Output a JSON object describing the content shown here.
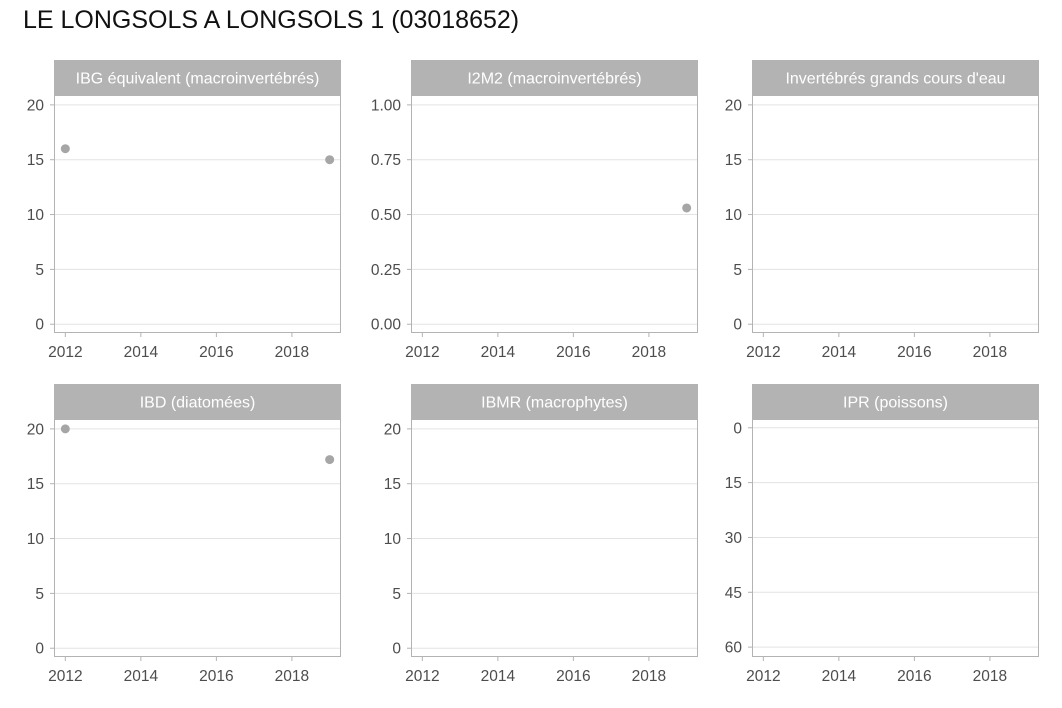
{
  "title": "LE LONGSOLS A LONGSOLS 1 (03018652)",
  "colors": {
    "strip_fill": "#b3b3b3",
    "panel_border": "#b3b3b3",
    "grid": "#e3e3e3",
    "point": "#a6a6a6",
    "tick_text": "#4d4d4d"
  },
  "chart_data": [
    {
      "type": "scatter",
      "title": "IBG équivalent (macroinvertébrés)",
      "xlim": [
        2011.7,
        2019.3
      ],
      "xticks": [
        2012,
        2014,
        2016,
        2018
      ],
      "ylim": [
        -0.8,
        20.9
      ],
      "yticks": [
        0,
        5,
        10,
        15,
        20
      ],
      "ytick_labels": [
        "0",
        "5",
        "10",
        "15",
        "20"
      ],
      "y_reversed": false,
      "points": [
        {
          "x": 2012,
          "y": 16
        },
        {
          "x": 2019,
          "y": 15
        }
      ]
    },
    {
      "type": "scatter",
      "title": "I2M2 (macroinvertébrés)",
      "xlim": [
        2011.7,
        2019.3
      ],
      "xticks": [
        2012,
        2014,
        2016,
        2018
      ],
      "ylim": [
        -0.04,
        1.045
      ],
      "yticks": [
        0,
        0.25,
        0.5,
        0.75,
        1
      ],
      "ytick_labels": [
        "0.00",
        "0.25",
        "0.50",
        "0.75",
        "1.00"
      ],
      "y_reversed": false,
      "points": [
        {
          "x": 2019,
          "y": 0.53
        }
      ]
    },
    {
      "type": "scatter",
      "title": "Invertébrés grands cours d'eau",
      "xlim": [
        2011.7,
        2019.3
      ],
      "xticks": [
        2012,
        2014,
        2016,
        2018
      ],
      "ylim": [
        -0.8,
        20.9
      ],
      "yticks": [
        0,
        5,
        10,
        15,
        20
      ],
      "ytick_labels": [
        "0",
        "5",
        "10",
        "15",
        "20"
      ],
      "y_reversed": false,
      "points": []
    },
    {
      "type": "scatter",
      "title": "IBD (diatomées)",
      "xlim": [
        2011.7,
        2019.3
      ],
      "xticks": [
        2012,
        2014,
        2016,
        2018
      ],
      "ylim": [
        -0.8,
        20.9
      ],
      "yticks": [
        0,
        5,
        10,
        15,
        20
      ],
      "ytick_labels": [
        "0",
        "5",
        "10",
        "15",
        "20"
      ],
      "y_reversed": false,
      "points": [
        {
          "x": 2012,
          "y": 20
        },
        {
          "x": 2019,
          "y": 17.2
        }
      ]
    },
    {
      "type": "scatter",
      "title": "IBMR (macrophytes)",
      "xlim": [
        2011.7,
        2019.3
      ],
      "xticks": [
        2012,
        2014,
        2016,
        2018
      ],
      "ylim": [
        -0.8,
        20.9
      ],
      "yticks": [
        0,
        5,
        10,
        15,
        20
      ],
      "ytick_labels": [
        "0",
        "5",
        "10",
        "15",
        "20"
      ],
      "y_reversed": false,
      "points": []
    },
    {
      "type": "scatter",
      "title": "IPR (poissons)",
      "xlim": [
        2011.7,
        2019.3
      ],
      "xticks": [
        2012,
        2014,
        2016,
        2018
      ],
      "ylim": [
        -2.4,
        62.7
      ],
      "yticks": [
        0,
        15,
        30,
        45,
        60
      ],
      "ytick_labels": [
        "0",
        "15",
        "30",
        "45",
        "60"
      ],
      "y_reversed": true,
      "points": []
    }
  ]
}
